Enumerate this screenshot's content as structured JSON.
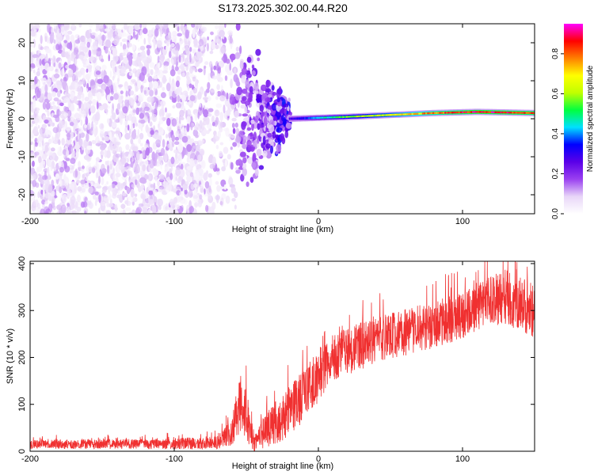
{
  "figure": {
    "title": "S173.2025.302.00.44.R20"
  },
  "chart_data": [
    {
      "type": "heatmap",
      "name": "spectrogram",
      "title": "S173.2025.302.00.44.R20",
      "xlabel": "Height of straight line (km)",
      "ylabel": "Frequency (Hz)",
      "xlim": [
        -200,
        150
      ],
      "ylim": [
        -25,
        25
      ],
      "xticks": [
        -200,
        -100,
        0,
        100
      ],
      "xtick_labels": [
        "-200",
        "-100",
        "0",
        "100"
      ],
      "yticks": [
        -20,
        -10,
        0,
        10,
        20
      ],
      "ytick_labels": [
        "-20",
        "-10",
        "0",
        "10",
        "20"
      ],
      "colorbar": {
        "label": "Normalized spectral amplitude",
        "range": [
          0,
          0.95
        ],
        "ticks": [
          0,
          0.2,
          0.4,
          0.6,
          0.8
        ],
        "tick_labels": [
          "0.0",
          "0.2",
          "0.4",
          "0.6",
          "0.8"
        ],
        "colors": [
          "#ffffff",
          "#e8d6f8",
          "#9a40f0",
          "#5a00e8",
          "#0000ff",
          "#00e0ff",
          "#00ff40",
          "#c0ff00",
          "#ffff00",
          "#ff8000",
          "#ff0000",
          "#ff00ff"
        ]
      },
      "noise_region_x": [
        -200,
        -60
      ],
      "transition_region_x": [
        -60,
        -20
      ],
      "carrier_line": {
        "start_x": -20,
        "end_x": 150,
        "frequency_hz": [
          0.0,
          0.5,
          1.0,
          1.5,
          1.8,
          1.5
        ],
        "at_x": [
          -20,
          20,
          50,
          80,
          110,
          150
        ],
        "amplitude": [
          0.3,
          0.6,
          0.7,
          0.85,
          0.95,
          0.9
        ]
      }
    },
    {
      "type": "line",
      "name": "snr",
      "xlabel": "Height of straight line (km)",
      "ylabel": "SNR (10 * v/v)",
      "xlim": [
        -200,
        150
      ],
      "ylim": [
        0,
        405
      ],
      "xticks": [
        -200,
        -100,
        0,
        100
      ],
      "xtick_labels": [
        "-200",
        "-100",
        "0",
        "100"
      ],
      "yticks": [
        0,
        100,
        200,
        300,
        400
      ],
      "ytick_labels": [
        "0",
        "100",
        "200",
        "300",
        "400"
      ],
      "color": "#f03030",
      "trend": {
        "x": [
          -200,
          -150,
          -100,
          -70,
          -60,
          -55,
          -50,
          -45,
          -40,
          -30,
          -20,
          -10,
          0,
          10,
          30,
          50,
          80,
          100,
          120,
          130,
          140,
          150
        ],
        "y_mean": [
          15,
          15,
          16,
          18,
          40,
          95,
          80,
          20,
          35,
          60,
          85,
          120,
          160,
          200,
          225,
          245,
          270,
          290,
          320,
          330,
          315,
          300
        ],
        "y_spread": [
          10,
          10,
          12,
          14,
          30,
          60,
          55,
          25,
          30,
          45,
          55,
          55,
          55,
          50,
          50,
          50,
          50,
          50,
          55,
          60,
          60,
          60
        ]
      }
    }
  ]
}
